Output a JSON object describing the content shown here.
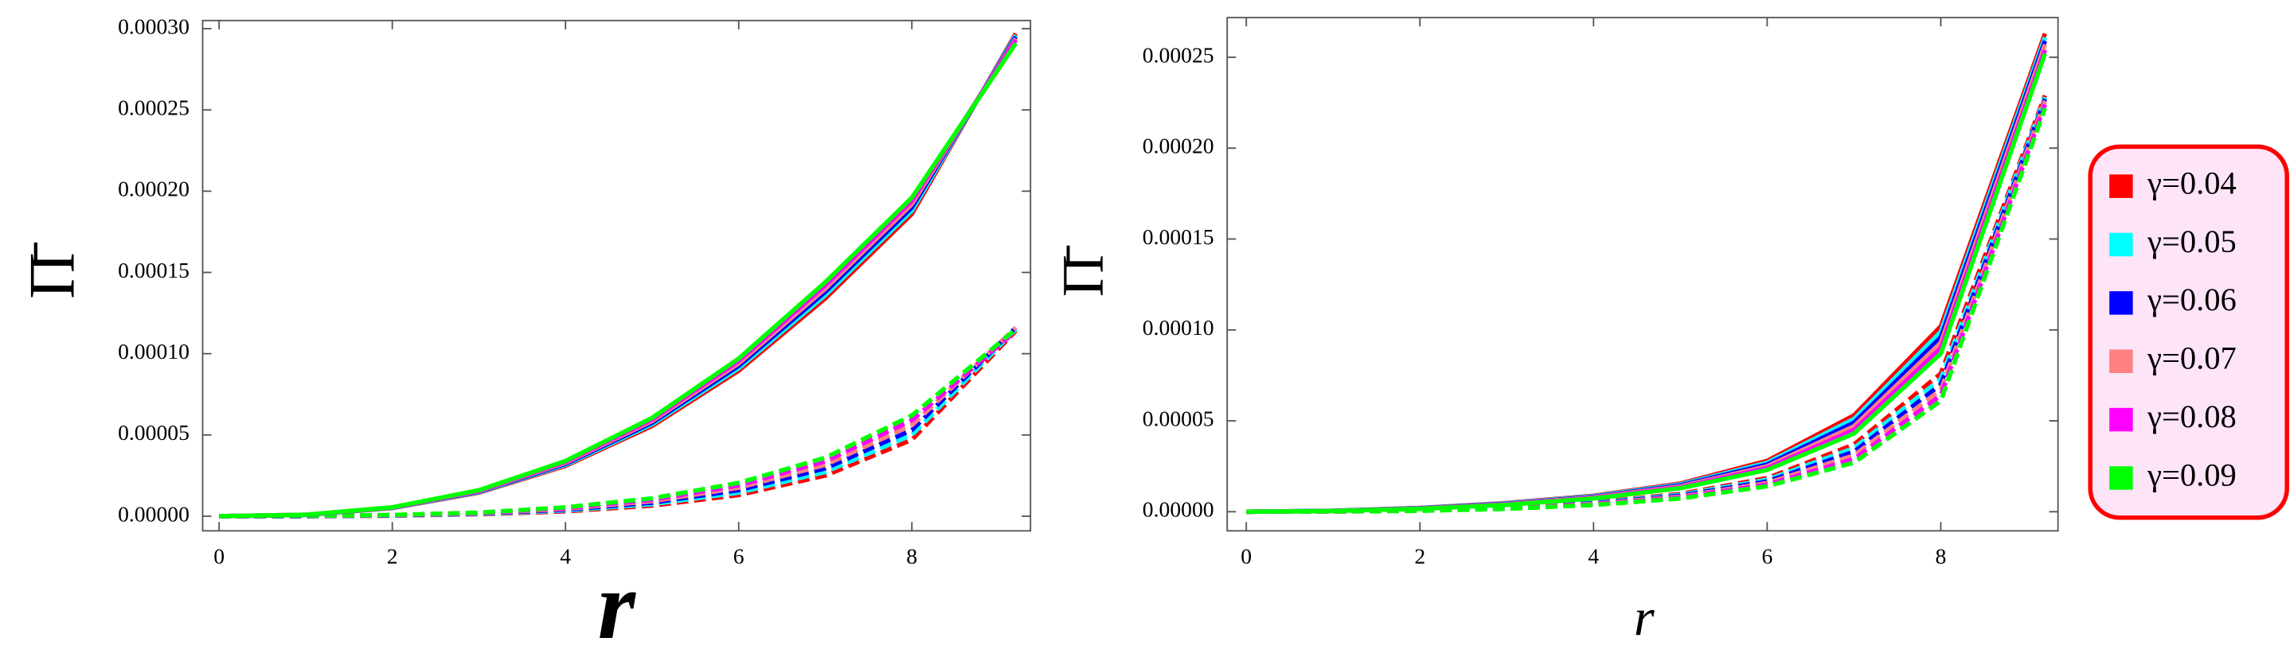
{
  "chart_data": [
    {
      "type": "line",
      "x_label": "r",
      "y_label": "Π̄",
      "x": [
        0,
        1,
        2,
        3,
        4,
        5,
        6,
        7,
        8,
        9.2
      ],
      "xlim": [
        -0.19,
        9.37
      ],
      "ylim": [
        -9e-06,
        0.000305
      ],
      "xticks": [
        0,
        2,
        4,
        6,
        8
      ],
      "yticks": [
        {
          "value": 0,
          "label": "0.00000"
        },
        {
          "value": 5e-05,
          "label": "0.00005"
        },
        {
          "value": 0.0001,
          "label": "0.00010"
        },
        {
          "value": 0.00015,
          "label": "0.00015"
        },
        {
          "value": 0.0002,
          "label": "0.00020"
        },
        {
          "value": 0.00025,
          "label": "0.00025"
        },
        {
          "value": 0.0003,
          "label": "0.00030"
        }
      ],
      "grid": false,
      "series": [
        {
          "color": "#ff0000",
          "values": [
            0,
            8e-07,
            5e-06,
            1.45e-05,
            3.1e-05,
            5.55e-05,
            8.95e-05,
            0.000134,
            0.000186,
            0.000297
          ],
          "dashed_values": [
            0,
            0,
            3e-07,
            1.2e-06,
            3e-06,
            6.5e-06,
            1.3e-05,
            2.5e-05,
            4.7e-05,
            0.000114
          ]
        },
        {
          "color": "#00ffff",
          "values": [
            0,
            8e-07,
            5.1e-06,
            1.48e-05,
            3.16e-05,
            5.65e-05,
            9.1e-05,
            0.000136,
            0.000188,
            0.000296
          ],
          "dashed_values": [
            0,
            0,
            4e-07,
            1.4e-06,
            3.5e-06,
            7.4e-06,
            1.45e-05,
            2.72e-05,
            5e-05,
            0.000115
          ]
        },
        {
          "color": "#0000ff",
          "values": [
            0,
            8e-07,
            5.2e-06,
            1.51e-05,
            3.22e-05,
            5.75e-05,
            9.25e-05,
            0.000138,
            0.00019,
            0.000295
          ],
          "dashed_values": [
            0,
            0,
            5e-07,
            1.6e-06,
            4e-06,
            8.3e-06,
            1.6e-05,
            2.94e-05,
            5.3e-05,
            0.000116
          ]
        },
        {
          "color": "#ff8080",
          "values": [
            0,
            9e-07,
            5.3e-06,
            1.54e-05,
            3.28e-05,
            5.85e-05,
            9.4e-05,
            0.00014,
            0.000192,
            0.000294
          ],
          "dashed_values": [
            0,
            1e-07,
            6e-07,
            1.8e-06,
            4.5e-06,
            9.2e-06,
            1.75e-05,
            3.16e-05,
            5.6e-05,
            0.000116
          ]
        },
        {
          "color": "#ff00ff",
          "values": [
            0,
            9e-07,
            5.4e-06,
            1.57e-05,
            3.34e-05,
            5.95e-05,
            9.55e-05,
            0.000142,
            0.000194,
            0.000293
          ],
          "dashed_values": [
            0,
            1e-07,
            7e-07,
            2e-06,
            5e-06,
            1.01e-05,
            1.9e-05,
            3.38e-05,
            5.9e-05,
            0.000114
          ]
        },
        {
          "color": "#00ff00",
          "values": [
            0,
            9e-07,
            5.5e-06,
            1.6e-05,
            3.4e-05,
            6.05e-05,
            9.7e-05,
            0.000144,
            0.000196,
            0.000291
          ],
          "dashed_values": [
            0,
            2e-07,
            8e-07,
            2.2e-06,
            5.5e-06,
            1.1e-05,
            2.05e-05,
            3.6e-05,
            6.2e-05,
            0.000115
          ]
        }
      ]
    },
    {
      "type": "line",
      "x_label": "r",
      "y_label": "Π̄",
      "x": [
        0,
        1,
        2,
        3,
        4,
        5,
        6,
        7,
        8,
        9.2
      ],
      "xlim": [
        -0.22,
        9.35
      ],
      "ylim": [
        -1.05e-05,
        0.0002718
      ],
      "xticks": [
        0,
        2,
        4,
        6,
        8
      ],
      "yticks": [
        {
          "value": 0,
          "label": "0.00000"
        },
        {
          "value": 5e-05,
          "label": "0.00005"
        },
        {
          "value": 0.0001,
          "label": "0.00010"
        },
        {
          "value": 0.00015,
          "label": "0.00015"
        },
        {
          "value": 0.0002,
          "label": "0.00020"
        },
        {
          "value": 0.00025,
          "label": "0.00025"
        }
      ],
      "grid": false,
      "legend": "right",
      "series": [
        {
          "name": "γ=0.04",
          "color": "#ff0000",
          "values": [
            0,
            5e-07,
            2.1e-06,
            4.8e-06,
            8.8e-06,
            1.55e-05,
            2.8e-05,
            5.3e-05,
            0.000102,
            0.000263
          ],
          "dashed_values": [
            0,
            2e-07,
            1e-06,
            2.6e-06,
            5.2e-06,
            9.8e-06,
            1.85e-05,
            3.7e-05,
            7.6e-05,
            0.000229
          ]
        },
        {
          "name": "γ=0.05",
          "color": "#00ffff",
          "values": [
            0,
            5e-07,
            2e-06,
            4.6e-06,
            8.5e-06,
            1.5e-05,
            2.7e-05,
            5.1e-05,
            9.9e-05,
            0.000261
          ],
          "dashed_values": [
            0,
            2e-07,
            9e-07,
            2.4e-06,
            4.9e-06,
            9.3e-06,
            1.76e-05,
            3.5e-05,
            7.3e-05,
            0.000228
          ]
        },
        {
          "name": "γ=0.06",
          "color": "#0000ff",
          "values": [
            0,
            5e-07,
            1.9e-06,
            4.4e-06,
            8.2e-06,
            1.45e-05,
            2.6e-05,
            4.9e-05,
            9.6e-05,
            0.000259
          ],
          "dashed_values": [
            0,
            2e-07,
            8e-07,
            2.2e-06,
            4.6e-06,
            8.8e-06,
            1.67e-05,
            3.3e-05,
            7e-05,
            0.000227
          ]
        },
        {
          "name": "γ=0.07",
          "color": "#ff8080",
          "values": [
            0,
            4e-07,
            1.8e-06,
            4.2e-06,
            7.9e-06,
            1.4e-05,
            2.5e-05,
            4.7e-05,
            9.3e-05,
            0.000257
          ],
          "dashed_values": [
            0,
            1e-07,
            7e-07,
            2e-06,
            4.3e-06,
            8.3e-06,
            1.58e-05,
            3.1e-05,
            6.7e-05,
            0.000226
          ]
        },
        {
          "name": "γ=0.08",
          "color": "#ff00ff",
          "values": [
            0,
            4e-07,
            1.7e-06,
            4e-06,
            7.6e-06,
            1.35e-05,
            2.4e-05,
            4.5e-05,
            9e-05,
            0.000254
          ],
          "dashed_values": [
            0,
            1e-07,
            6e-07,
            1.8e-06,
            4e-06,
            7.8e-06,
            1.49e-05,
            2.9e-05,
            6.4e-05,
            0.000224
          ]
        },
        {
          "name": "γ=0.09",
          "color": "#00ff00",
          "values": [
            0,
            4e-07,
            1.6e-06,
            3.8e-06,
            7.3e-06,
            1.3e-05,
            2.3e-05,
            4.3e-05,
            8.7e-05,
            0.000252
          ],
          "dashed_values": [
            0,
            1e-07,
            5e-07,
            1.6e-06,
            3.7e-06,
            7.3e-06,
            1.4e-05,
            2.7e-05,
            6.1e-05,
            0.000222
          ]
        }
      ]
    }
  ]
}
